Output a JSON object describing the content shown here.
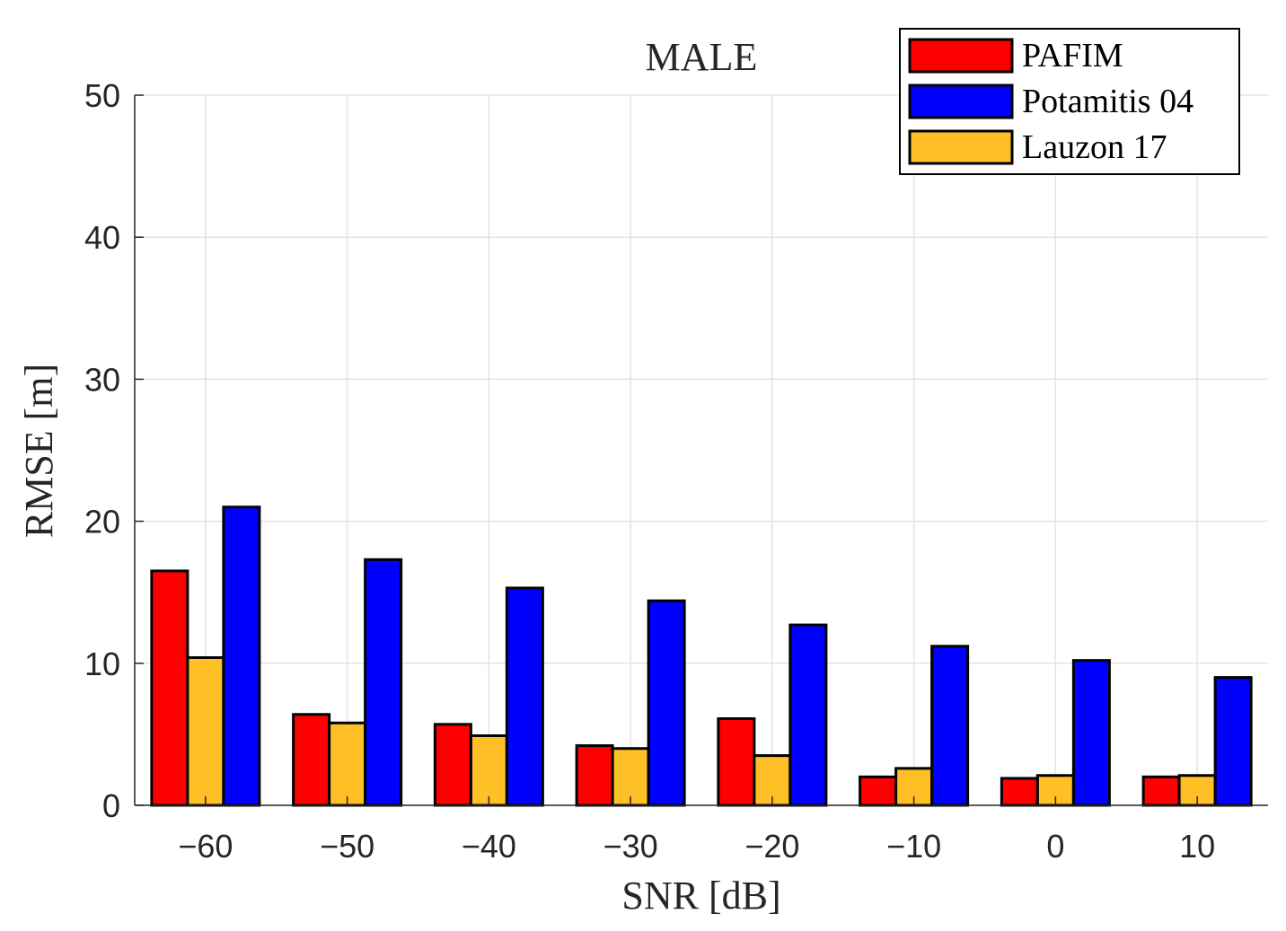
{
  "chart_data": {
    "type": "bar",
    "title": "MALE",
    "xlabel": "SNR [dB]",
    "ylabel": "RMSE [m]",
    "categories": [
      "−60",
      "−50",
      "−40",
      "−30",
      "−20",
      "−10",
      "0",
      "10"
    ],
    "ylim": [
      0,
      50
    ],
    "yticks": [
      "0",
      "10",
      "20",
      "30",
      "40",
      "50"
    ],
    "grid": true,
    "legend_position": "top-right",
    "series": [
      {
        "name": "PAFIM",
        "color": "#ff0000",
        "values": [
          16.5,
          6.4,
          5.7,
          4.2,
          6.1,
          2.0,
          1.9,
          2.0
        ]
      },
      {
        "name": "Lauzon 17",
        "color": "#ffbf26",
        "values": [
          10.4,
          5.8,
          4.9,
          4.0,
          3.5,
          2.6,
          2.1,
          2.1
        ]
      },
      {
        "name": "Potamitis 04",
        "color": "#0000ff",
        "values": [
          21.0,
          17.3,
          15.3,
          14.4,
          12.7,
          11.2,
          10.2,
          9.0
        ]
      }
    ],
    "legend_order": [
      "PAFIM",
      "Potamitis 04",
      "Lauzon 17"
    ]
  }
}
